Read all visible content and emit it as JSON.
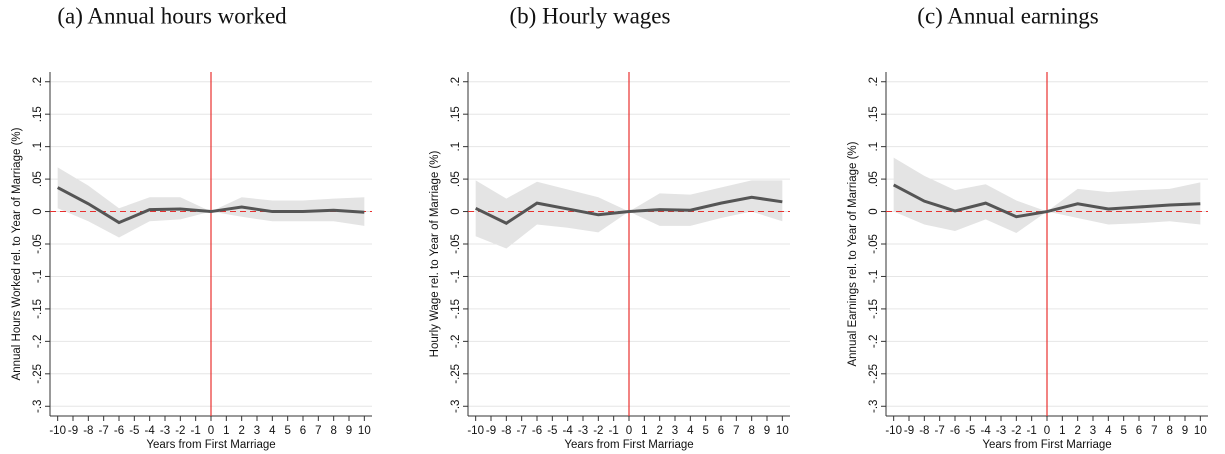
{
  "chart_data": [
    {
      "type": "line",
      "title": "(a) Annual hours worked",
      "ylabel": "Annual Hours Worked rel. to Year of Marriage (%)",
      "xlabel": "Years from First Marriage",
      "x": [
        -10,
        -8,
        -6,
        -4,
        -2,
        0,
        2,
        4,
        6,
        8,
        10
      ],
      "values": [
        0.037,
        0.012,
        -0.017,
        0.003,
        0.004,
        0,
        0.007,
        0,
        0,
        0.002,
        -0.001
      ],
      "ci_lower": [
        0.005,
        -0.015,
        -0.04,
        -0.015,
        -0.012,
        0,
        -0.008,
        -0.015,
        -0.015,
        -0.015,
        -0.022
      ],
      "ci_upper": [
        0.068,
        0.04,
        0.005,
        0.022,
        0.022,
        0,
        0.022,
        0.017,
        0.017,
        0.02,
        0.022
      ],
      "color": "#555555",
      "band_color": "#e4e4e4",
      "ref_color": "#e8312f",
      "vline": 0,
      "hline": 0,
      "xlim": [
        -10.5,
        10.5
      ],
      "ylim": [
        -0.315,
        0.215
      ],
      "xticks": [
        -10,
        -9,
        -8,
        -7,
        -6,
        -5,
        -4,
        -3,
        -2,
        -1,
        0,
        1,
        2,
        3,
        4,
        5,
        6,
        7,
        8,
        9,
        10
      ],
      "yticks": [
        {
          "value": 0.2,
          "label": ".2"
        },
        {
          "value": 0.15,
          "label": ".15"
        },
        {
          "value": 0.1,
          "label": ".1"
        },
        {
          "value": 0.05,
          "label": ".05"
        },
        0,
        {
          "value": -0.05,
          "label": "-.05"
        },
        {
          "value": -0.1,
          "label": "-.1"
        },
        {
          "value": -0.15,
          "label": "-.15"
        },
        {
          "value": -0.2,
          "label": "-.2"
        },
        {
          "value": -0.25,
          "label": "-.25"
        },
        {
          "value": -0.3,
          "label": "-.3"
        }
      ],
      "grid": true
    },
    {
      "type": "line",
      "title": "(b) Hourly wages",
      "ylabel": "Hourly Wage rel. to Year of Marriage (%)",
      "xlabel": "Years from First Marriage",
      "x": [
        -10,
        -8,
        -6,
        -4,
        -2,
        0,
        2,
        4,
        6,
        8,
        10
      ],
      "values": [
        0.005,
        -0.018,
        0.013,
        0.004,
        -0.005,
        0,
        0.003,
        0.002,
        0.013,
        0.022,
        0.015
      ],
      "ci_lower": [
        -0.038,
        -0.057,
        -0.02,
        -0.025,
        -0.032,
        0,
        -0.022,
        -0.022,
        -0.01,
        0,
        -0.015
      ],
      "ci_upper": [
        0.048,
        0.02,
        0.046,
        0.034,
        0.022,
        0,
        0.028,
        0.026,
        0.037,
        0.048,
        0.048
      ],
      "color": "#555555",
      "band_color": "#e4e4e4",
      "ref_color": "#e8312f",
      "vline": 0,
      "hline": 0,
      "xlim": [
        -10.5,
        10.5
      ],
      "ylim": [
        -0.315,
        0.215
      ],
      "xticks": [
        -10,
        -9,
        -8,
        -7,
        -6,
        -5,
        -4,
        -3,
        -2,
        -1,
        0,
        1,
        2,
        3,
        4,
        5,
        6,
        7,
        8,
        9,
        10
      ],
      "yticks": [
        {
          "value": 0.2,
          "label": ".2"
        },
        {
          "value": 0.15,
          "label": ".15"
        },
        {
          "value": 0.1,
          "label": ".1"
        },
        {
          "value": 0.05,
          "label": ".05"
        },
        0,
        {
          "value": -0.05,
          "label": "-.05"
        },
        {
          "value": -0.1,
          "label": "-.1"
        },
        {
          "value": -0.15,
          "label": "-.15"
        },
        {
          "value": -0.2,
          "label": "-.2"
        },
        {
          "value": -0.25,
          "label": "-.25"
        },
        {
          "value": -0.3,
          "label": "-.3"
        }
      ],
      "grid": true
    },
    {
      "type": "line",
      "title": "(c) Annual earnings",
      "ylabel": "Annual Earnings rel. to Year of Marriage (%)",
      "xlabel": "Years from First Marriage",
      "x": [
        -10,
        -8,
        -6,
        -4,
        -2,
        0,
        2,
        4,
        6,
        8,
        10
      ],
      "values": [
        0.041,
        0.016,
        0.001,
        0.013,
        -0.008,
        0,
        0.012,
        0.004,
        0.007,
        0.01,
        0.012
      ],
      "ci_lower": [
        0,
        -0.02,
        -0.03,
        -0.012,
        -0.033,
        0,
        -0.01,
        -0.02,
        -0.018,
        -0.015,
        -0.02
      ],
      "ci_upper": [
        0.083,
        0.055,
        0.033,
        0.042,
        0.017,
        0,
        0.035,
        0.03,
        0.033,
        0.035,
        0.045
      ],
      "color": "#555555",
      "band_color": "#e4e4e4",
      "ref_color": "#e8312f",
      "vline": 0,
      "hline": 0,
      "xlim": [
        -10.5,
        10.5
      ],
      "ylim": [
        -0.315,
        0.215
      ],
      "xticks": [
        -10,
        -9,
        -8,
        -7,
        -6,
        -5,
        -4,
        -3,
        -2,
        -1,
        0,
        1,
        2,
        3,
        4,
        5,
        6,
        7,
        8,
        9,
        10
      ],
      "yticks": [
        {
          "value": 0.2,
          "label": ".2"
        },
        {
          "value": 0.15,
          "label": ".15"
        },
        {
          "value": 0.1,
          "label": ".1"
        },
        {
          "value": 0.05,
          "label": ".05"
        },
        0,
        {
          "value": -0.05,
          "label": "-.05"
        },
        {
          "value": -0.1,
          "label": "-.1"
        },
        {
          "value": -0.15,
          "label": "-.15"
        },
        {
          "value": -0.2,
          "label": "-.2"
        },
        {
          "value": -0.25,
          "label": "-.25"
        },
        {
          "value": -0.3,
          "label": "-.3"
        }
      ],
      "grid": true
    }
  ]
}
